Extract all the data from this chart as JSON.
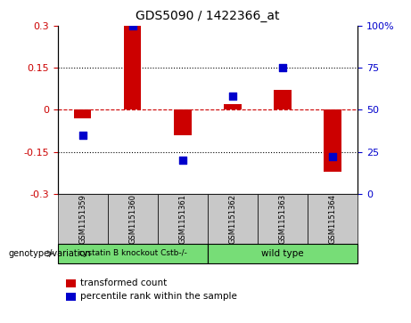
{
  "title": "GDS5090 / 1422366_at",
  "samples": [
    "GSM1151359",
    "GSM1151360",
    "GSM1151361",
    "GSM1151362",
    "GSM1151363",
    "GSM1151364"
  ],
  "red_bars": [
    -0.03,
    0.3,
    -0.09,
    0.02,
    0.07,
    -0.22
  ],
  "blue_pct": [
    35,
    100,
    20,
    58,
    75,
    22
  ],
  "group1_label": "cystatin B knockout Cstb-/-",
  "group2_label": "wild type",
  "group_color": "#77DD77",
  "ylim_left": [
    -0.3,
    0.3
  ],
  "yticks_left": [
    -0.3,
    -0.15,
    0.0,
    0.15,
    0.3
  ],
  "ytick_left_labels": [
    "-0.3",
    "-0.15",
    "0",
    "0.15",
    "0.3"
  ],
  "yticks_right_pct": [
    0,
    25,
    50,
    75,
    100
  ],
  "ytick_right_labels": [
    "0",
    "25",
    "50",
    "75",
    "100%"
  ],
  "left_tick_color": "#cc0000",
  "right_tick_color": "#0000cc",
  "bar_color": "#cc0000",
  "dot_color": "#0000cc",
  "sample_box_color": "#c8c8c8",
  "genotype_label": "genotype/variation",
  "legend_bar_label": "transformed count",
  "legend_dot_label": "percentile rank within the sample",
  "bar_width": 0.35,
  "dot_size": 40,
  "title_fontsize": 10
}
